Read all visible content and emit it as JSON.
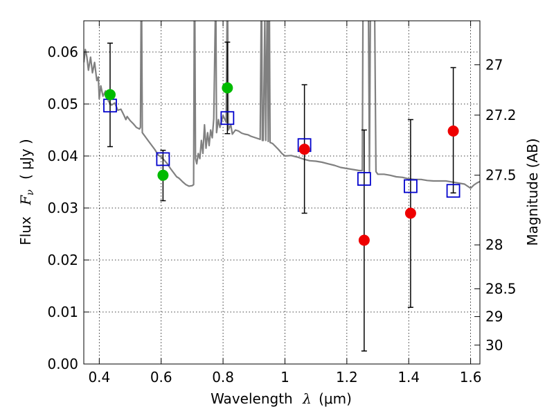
{
  "chart_data": {
    "type": "scatter",
    "xlabel": {
      "prefix": "Wavelength",
      "symbol": "λ",
      "unit": "(μm)"
    },
    "ylabel": {
      "prefix": "Flux",
      "symbol": "F",
      "subscript": "ν",
      "unit": "( μJy )"
    },
    "y2label": "Magnitude (AB)",
    "xlim": [
      0.35,
      1.63
    ],
    "ylim": [
      0.0,
      0.066
    ],
    "grid": true,
    "x_ticks": [
      0.4,
      0.6,
      0.8,
      1.0,
      1.2,
      1.4,
      1.6
    ],
    "x_tick_labels": [
      "0.4",
      "0.6",
      "0.8",
      "1",
      "1.2",
      "1.4",
      "1.6"
    ],
    "y_ticks": [
      0.0,
      0.01,
      0.02,
      0.03,
      0.04,
      0.05,
      0.06
    ],
    "y_tick_labels": [
      "0.00",
      "0.01",
      "0.02",
      "0.03",
      "0.04",
      "0.05",
      "0.06"
    ],
    "y2_ticks": [
      27,
      27.2,
      27.5,
      28,
      28.5,
      29,
      30
    ],
    "y2_tick_labels": [
      "27",
      "27.2",
      "27.5",
      "28",
      "28.5",
      "29",
      "30"
    ],
    "colors": {
      "model": "#808080",
      "green": "#00bb00",
      "red": "#ee0000",
      "box": "#0000cc",
      "error": "#000000"
    },
    "series": [
      {
        "marker": "square-open",
        "color": "#0000cc",
        "points": [
          {
            "x": 0.435,
            "y": 0.0497
          },
          {
            "x": 0.606,
            "y": 0.0394
          },
          {
            "x": 0.814,
            "y": 0.0473
          },
          {
            "x": 1.063,
            "y": 0.0421
          },
          {
            "x": 1.256,
            "y": 0.0356
          },
          {
            "x": 1.406,
            "y": 0.0342
          },
          {
            "x": 1.544,
            "y": 0.0333
          }
        ]
      },
      {
        "marker": "circle",
        "color": "#00bb00",
        "points": [
          {
            "x": 0.435,
            "y": 0.0518,
            "yerr_low": 0.0418,
            "yerr_high": 0.0617
          },
          {
            "x": 0.606,
            "y": 0.0363,
            "yerr_low": 0.0314,
            "yerr_high": 0.0411
          },
          {
            "x": 0.814,
            "y": 0.0531,
            "yerr_low": 0.0443,
            "yerr_high": 0.0619
          }
        ]
      },
      {
        "marker": "circle",
        "color": "#ee0000",
        "points": [
          {
            "x": 1.063,
            "y": 0.0413,
            "yerr_low": 0.029,
            "yerr_high": 0.0537
          },
          {
            "x": 1.256,
            "y": 0.0238,
            "yerr_low": 0.0025,
            "yerr_high": 0.045
          },
          {
            "x": 1.406,
            "y": 0.029,
            "yerr_low": 0.0109,
            "yerr_high": 0.047
          },
          {
            "x": 1.544,
            "y": 0.0448,
            "yerr_low": 0.0329,
            "yerr_high": 0.057
          }
        ]
      }
    ],
    "model_spectrum": [
      [
        0.35,
        0.058
      ],
      [
        0.355,
        0.0605
      ],
      [
        0.36,
        0.059
      ],
      [
        0.365,
        0.0565
      ],
      [
        0.372,
        0.059
      ],
      [
        0.378,
        0.056
      ],
      [
        0.385,
        0.058
      ],
      [
        0.392,
        0.0545
      ],
      [
        0.397,
        0.0552
      ],
      [
        0.4,
        0.051
      ],
      [
        0.405,
        0.0535
      ],
      [
        0.412,
        0.0515
      ],
      [
        0.42,
        0.0525
      ],
      [
        0.43,
        0.0505
      ],
      [
        0.44,
        0.0498
      ],
      [
        0.45,
        0.0502
      ],
      [
        0.46,
        0.0488
      ],
      [
        0.47,
        0.049
      ],
      [
        0.48,
        0.0478
      ],
      [
        0.486,
        0.047
      ],
      [
        0.49,
        0.0476
      ],
      [
        0.5,
        0.0468
      ],
      [
        0.51,
        0.0462
      ],
      [
        0.52,
        0.0455
      ],
      [
        0.53,
        0.0452
      ],
      [
        0.533,
        0.0455
      ],
      [
        0.535,
        0.0665
      ],
      [
        0.537,
        0.0665
      ],
      [
        0.539,
        0.0445
      ],
      [
        0.55,
        0.0436
      ],
      [
        0.56,
        0.0428
      ],
      [
        0.57,
        0.042
      ],
      [
        0.58,
        0.0412
      ],
      [
        0.59,
        0.0402
      ],
      [
        0.6,
        0.0398
      ],
      [
        0.61,
        0.0392
      ],
      [
        0.62,
        0.0385
      ],
      [
        0.63,
        0.0376
      ],
      [
        0.64,
        0.0368
      ],
      [
        0.65,
        0.036
      ],
      [
        0.656,
        0.0358
      ],
      [
        0.66,
        0.0356
      ],
      [
        0.67,
        0.035
      ],
      [
        0.68,
        0.0345
      ],
      [
        0.69,
        0.0342
      ],
      [
        0.7,
        0.0343
      ],
      [
        0.705,
        0.0345
      ],
      [
        0.707,
        0.0665
      ],
      [
        0.709,
        0.0665
      ],
      [
        0.711,
        0.0395
      ],
      [
        0.715,
        0.0385
      ],
      [
        0.72,
        0.0405
      ],
      [
        0.725,
        0.0395
      ],
      [
        0.73,
        0.043
      ],
      [
        0.735,
        0.0405
      ],
      [
        0.74,
        0.046
      ],
      [
        0.745,
        0.0415
      ],
      [
        0.75,
        0.0445
      ],
      [
        0.755,
        0.042
      ],
      [
        0.76,
        0.045
      ],
      [
        0.765,
        0.0435
      ],
      [
        0.77,
        0.0472
      ],
      [
        0.775,
        0.0665
      ],
      [
        0.777,
        0.0665
      ],
      [
        0.779,
        0.0445
      ],
      [
        0.785,
        0.047
      ],
      [
        0.79,
        0.0455
      ],
      [
        0.8,
        0.0478
      ],
      [
        0.81,
        0.0465
      ],
      [
        0.813,
        0.0665
      ],
      [
        0.815,
        0.0665
      ],
      [
        0.817,
        0.045
      ],
      [
        0.825,
        0.046
      ],
      [
        0.83,
        0.0442
      ],
      [
        0.84,
        0.045
      ],
      [
        0.85,
        0.0448
      ],
      [
        0.86,
        0.0444
      ],
      [
        0.87,
        0.0442
      ],
      [
        0.88,
        0.0441
      ],
      [
        0.89,
        0.0438
      ],
      [
        0.9,
        0.0436
      ],
      [
        0.91,
        0.0434
      ],
      [
        0.92,
        0.0432
      ],
      [
        0.923,
        0.0665
      ],
      [
        0.925,
        0.0665
      ],
      [
        0.927,
        0.043
      ],
      [
        0.93,
        0.043
      ],
      [
        0.935,
        0.0665
      ],
      [
        0.938,
        0.043
      ],
      [
        0.942,
        0.0665
      ],
      [
        0.944,
        0.0665
      ],
      [
        0.946,
        0.0428
      ],
      [
        0.948,
        0.0665
      ],
      [
        0.95,
        0.0665
      ],
      [
        0.952,
        0.0426
      ],
      [
        0.96,
        0.0424
      ],
      [
        0.97,
        0.0418
      ],
      [
        0.98,
        0.0412
      ],
      [
        0.99,
        0.0405
      ],
      [
        1.0,
        0.04
      ],
      [
        1.02,
        0.0401
      ],
      [
        1.04,
        0.0398
      ],
      [
        1.06,
        0.0394
      ],
      [
        1.08,
        0.0391
      ],
      [
        1.1,
        0.039
      ],
      [
        1.12,
        0.0388
      ],
      [
        1.14,
        0.0385
      ],
      [
        1.16,
        0.0382
      ],
      [
        1.18,
        0.0378
      ],
      [
        1.2,
        0.0376
      ],
      [
        1.22,
        0.0374
      ],
      [
        1.24,
        0.0372
      ],
      [
        1.25,
        0.0372
      ],
      [
        1.252,
        0.0665
      ],
      [
        1.262,
        0.0665
      ],
      [
        1.265,
        0.0665
      ],
      [
        1.27,
        0.0665
      ],
      [
        1.273,
        0.037
      ],
      [
        1.276,
        0.0665
      ],
      [
        1.285,
        0.0665
      ],
      [
        1.29,
        0.0665
      ],
      [
        1.294,
        0.037
      ],
      [
        1.3,
        0.0365
      ],
      [
        1.32,
        0.0365
      ],
      [
        1.34,
        0.0363
      ],
      [
        1.36,
        0.036
      ],
      [
        1.38,
        0.0359
      ],
      [
        1.4,
        0.0356
      ],
      [
        1.42,
        0.0355
      ],
      [
        1.44,
        0.0355
      ],
      [
        1.46,
        0.0353
      ],
      [
        1.48,
        0.0352
      ],
      [
        1.5,
        0.0352
      ],
      [
        1.52,
        0.0352
      ],
      [
        1.54,
        0.035
      ],
      [
        1.56,
        0.0348
      ],
      [
        1.58,
        0.0346
      ],
      [
        1.6,
        0.0338
      ],
      [
        1.61,
        0.0344
      ],
      [
        1.62,
        0.0348
      ],
      [
        1.63,
        0.0351
      ]
    ]
  }
}
